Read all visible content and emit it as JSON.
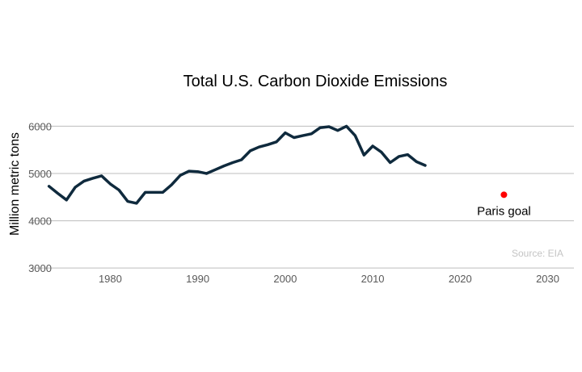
{
  "chart_data": {
    "type": "line",
    "title": "Total U.S. Carbon Dioxide Emissions",
    "xlabel": "",
    "ylabel": "Million metric tons",
    "xlim": [
      1971,
      2033
    ],
    "ylim": [
      2900,
      6400
    ],
    "xticks": [
      1980,
      1990,
      2000,
      2010,
      2020,
      2030
    ],
    "yticks": [
      3000,
      4000,
      5000,
      6000
    ],
    "grid": "horizontal",
    "legend": "none",
    "colors": {
      "series": "#0f2a3d",
      "goal": "#ff0000",
      "grid": "#bdbdbd"
    },
    "series": [
      {
        "name": "",
        "x": [
          1973,
          1974,
          1975,
          1976,
          1977,
          1978,
          1979,
          1980,
          1981,
          1982,
          1983,
          1984,
          1985,
          1986,
          1987,
          1988,
          1989,
          1990,
          1991,
          1992,
          1993,
          1994,
          1995,
          1996,
          1997,
          1998,
          1999,
          2000,
          2001,
          2002,
          2003,
          2004,
          2005,
          2006,
          2007,
          2008,
          2009,
          2010,
          2011,
          2012,
          2013,
          2014,
          2015,
          2016
        ],
        "values": [
          4730,
          4580,
          4440,
          4710,
          4840,
          4900,
          4950,
          4780,
          4650,
          4410,
          4370,
          4600,
          4600,
          4600,
          4760,
          4960,
          5050,
          5040,
          5000,
          5080,
          5160,
          5230,
          5290,
          5480,
          5560,
          5610,
          5670,
          5860,
          5760,
          5800,
          5840,
          5970,
          5990,
          5910,
          6000,
          5800,
          5390,
          5580,
          5450,
          5230,
          5360,
          5400,
          5250,
          5170
        ]
      }
    ],
    "annotations": [
      {
        "type": "point",
        "x": 2025,
        "y": 4550,
        "label": "Paris goal"
      }
    ],
    "source": "Source: EIA"
  }
}
